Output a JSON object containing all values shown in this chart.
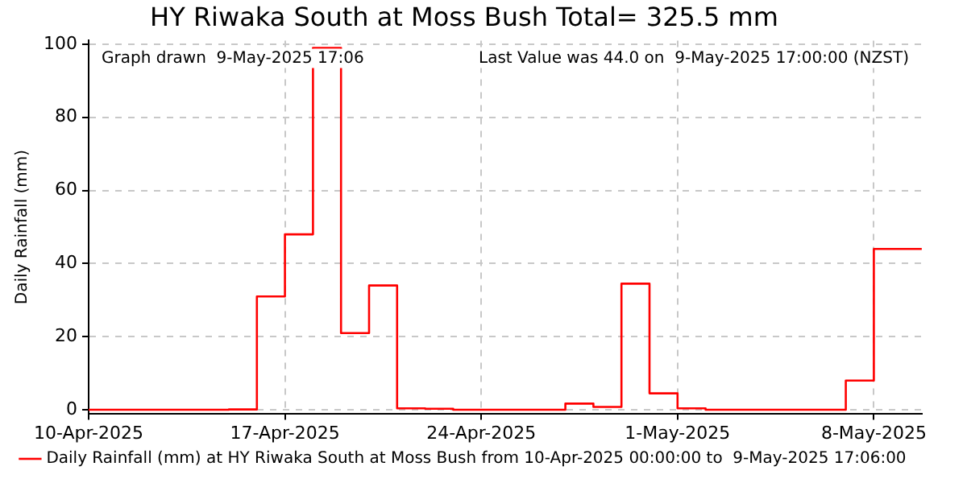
{
  "chart_data": {
    "type": "step",
    "title": "HY Riwaka South at Moss Bush Total= 325.5 mm",
    "ylabel": "Daily Rainfall (mm)",
    "x": [
      "2025-04-10",
      "2025-04-11",
      "2025-04-12",
      "2025-04-13",
      "2025-04-14",
      "2025-04-15",
      "2025-04-16",
      "2025-04-17",
      "2025-04-18",
      "2025-04-19",
      "2025-04-20",
      "2025-04-21",
      "2025-04-22",
      "2025-04-23",
      "2025-04-24",
      "2025-04-25",
      "2025-04-26",
      "2025-04-27",
      "2025-04-28",
      "2025-04-29",
      "2025-04-30",
      "2025-05-01",
      "2025-05-02",
      "2025-05-03",
      "2025-05-04",
      "2025-05-05",
      "2025-05-06",
      "2025-05-07",
      "2025-05-08",
      "2025-05-09",
      "2025-05-09T17:00"
    ],
    "series": [
      {
        "name": "Daily Rainfall (mm) at HY Riwaka South at Moss Bush from 10-Apr-2025 00:00:00 to  9-May-2025 17:06:00",
        "color": "#ff0000",
        "values": [
          0,
          0,
          0,
          0,
          0,
          0,
          0.1,
          31,
          48,
          99,
          21,
          34,
          0.4,
          0.3,
          0,
          0,
          0,
          0,
          1.7,
          0.8,
          34.5,
          4.5,
          0.4,
          0,
          0,
          0,
          0,
          0,
          8,
          44.0,
          44.0
        ]
      }
    ],
    "xlim": [
      "2025-04-10",
      "2025-05-09T17:06"
    ],
    "xticks": [
      {
        "value": "2025-04-10",
        "label": "10-Apr-2025"
      },
      {
        "value": "2025-04-17",
        "label": "17-Apr-2025"
      },
      {
        "value": "2025-04-24",
        "label": "24-Apr-2025"
      },
      {
        "value": "2025-05-01",
        "label": "1-May-2025"
      },
      {
        "value": "2025-05-08",
        "label": "8-May-2025"
      }
    ],
    "ylim": [
      -1,
      101
    ],
    "yticks": [
      0,
      20,
      40,
      60,
      80,
      100
    ],
    "grid": true,
    "legend": "bottom",
    "line_style": "solid",
    "marker": "none",
    "annotations": [
      "Graph drawn  9-May-2025 17:06",
      "Last Value was 44.0 on  9-May-2025 17:00:00 (NZST)"
    ]
  }
}
